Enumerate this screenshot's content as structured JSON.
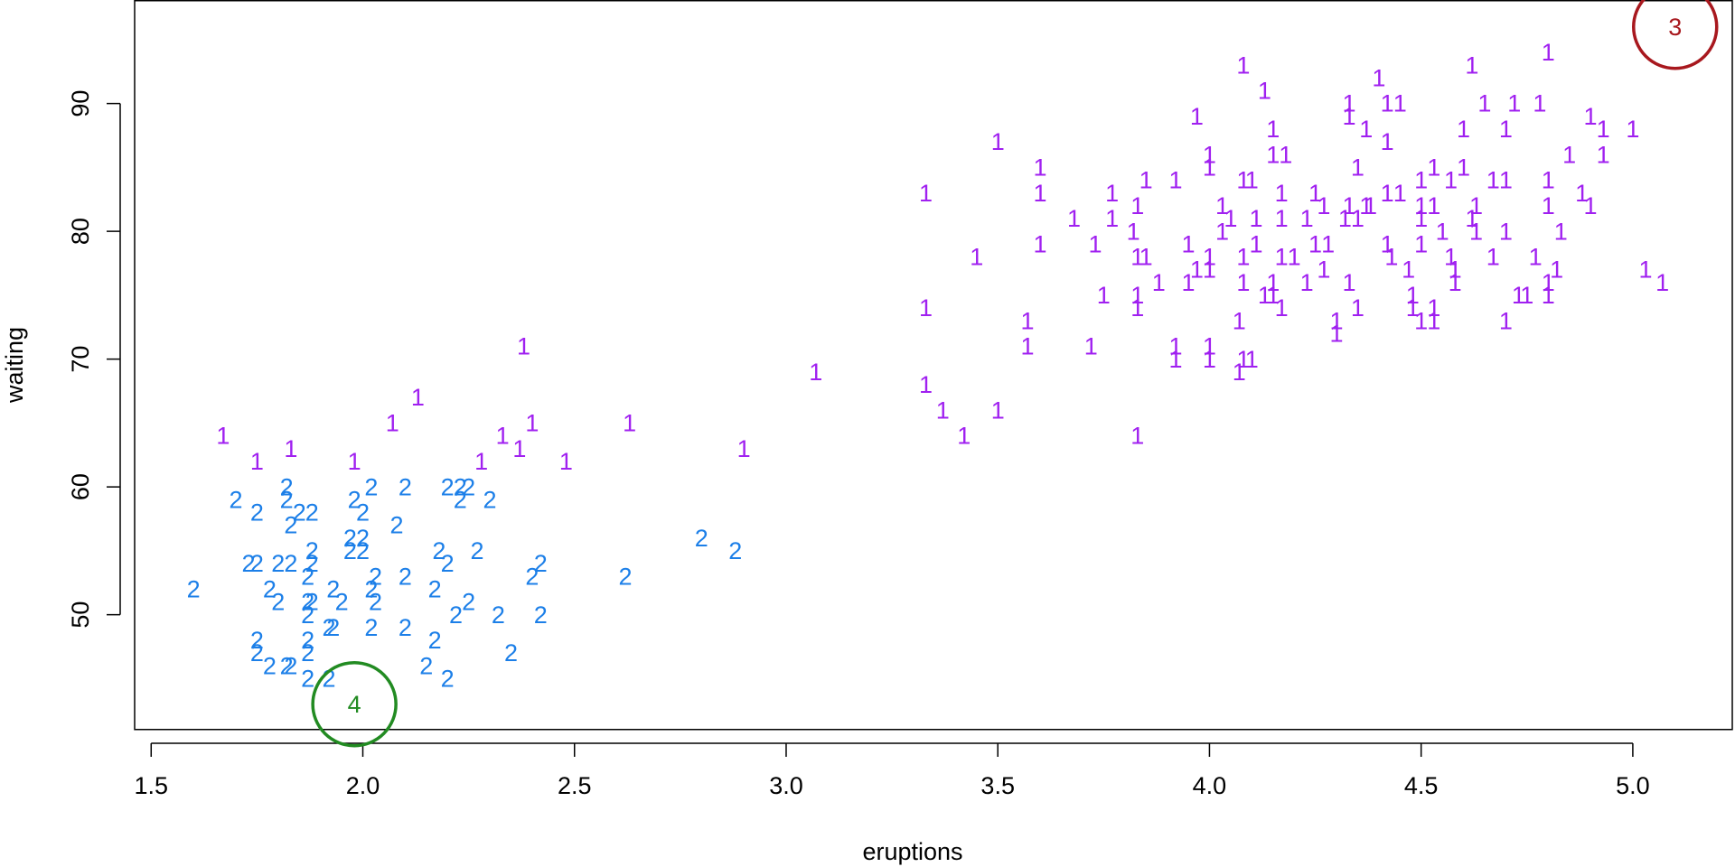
{
  "chart_data": {
    "type": "scatter",
    "xlabel": "eruptions",
    "ylabel": "waiting",
    "xlim": [
      1.461,
      5.235
    ],
    "ylim": [
      41.0,
      98.1
    ],
    "xticks": [
      1.5,
      {
        "value": 2,
        "label": "2.0"
      },
      2.5,
      {
        "value": 3,
        "label": "3.0"
      },
      3.5,
      {
        "value": 4,
        "label": "4.0"
      },
      4.5,
      {
        "value": 5,
        "label": "5.0"
      }
    ],
    "yticks": [
      50,
      60,
      70,
      80,
      90
    ],
    "grid": false,
    "series": [
      {
        "name": "1",
        "color": "#a020f0",
        "marker": "text",
        "x": [
          1.67,
          1.75,
          1.83,
          1.98,
          2.07,
          2.13,
          2.38,
          2.28,
          2.33,
          2.37,
          2.4,
          2.48,
          2.63,
          2.9,
          3.07,
          3.33,
          3.33,
          3.33,
          3.37,
          3.42,
          3.45,
          3.5,
          3.5,
          3.57,
          3.57,
          3.6,
          3.6,
          3.6,
          3.68,
          3.72,
          3.73,
          3.75,
          3.77,
          3.77,
          3.82,
          3.83,
          3.83,
          3.85,
          3.83,
          3.83,
          3.83,
          3.85,
          3.88,
          3.92,
          3.92,
          3.92,
          3.95,
          3.95,
          3.97,
          3.97,
          4.0,
          4.0,
          4.0,
          4.0,
          4.0,
          4.0,
          4.03,
          4.03,
          4.05,
          4.07,
          4.07,
          4.08,
          4.08,
          4.08,
          4.08,
          4.08,
          4.1,
          4.1,
          4.11,
          4.11,
          4.13,
          4.13,
          4.15,
          4.15,
          4.15,
          4.15,
          4.17,
          4.17,
          4.17,
          4.17,
          4.18,
          4.2,
          4.23,
          4.23,
          4.25,
          4.25,
          4.27,
          4.27,
          4.28,
          4.3,
          4.3,
          4.32,
          4.33,
          4.33,
          4.33,
          4.33,
          4.35,
          4.35,
          4.35,
          4.37,
          4.37,
          4.38,
          4.4,
          4.42,
          4.42,
          4.42,
          4.42,
          4.43,
          4.45,
          4.45,
          4.47,
          4.48,
          4.48,
          4.5,
          4.5,
          4.5,
          4.5,
          4.5,
          4.53,
          4.53,
          4.53,
          4.53,
          4.55,
          4.57,
          4.57,
          4.58,
          4.58,
          4.6,
          4.6,
          4.62,
          4.62,
          4.63,
          4.63,
          4.65,
          4.67,
          4.67,
          4.7,
          4.7,
          4.7,
          4.7,
          4.72,
          4.73,
          4.75,
          4.77,
          4.78,
          4.8,
          4.8,
          4.8,
          4.8,
          4.8,
          4.82,
          4.83,
          4.85,
          4.88,
          4.9,
          4.9,
          4.93,
          4.93,
          5.0,
          5.03,
          5.07
        ],
        "values": [
          64,
          62,
          63,
          62,
          65,
          67,
          71,
          62,
          64,
          63,
          65,
          62,
          65,
          63,
          69,
          83,
          74,
          68,
          66,
          64,
          78,
          87,
          66,
          73,
          71,
          85,
          83,
          79,
          81,
          71,
          79,
          75,
          83,
          81,
          80,
          82,
          78,
          78,
          75,
          74,
          64,
          84,
          76,
          84,
          71,
          70,
          79,
          76,
          89,
          77,
          86,
          85,
          78,
          77,
          71,
          70,
          82,
          80,
          81,
          73,
          69,
          93,
          84,
          78,
          76,
          70,
          84,
          70,
          81,
          79,
          91,
          75,
          88,
          86,
          76,
          75,
          83,
          81,
          78,
          74,
          86,
          78,
          81,
          76,
          83,
          79,
          82,
          77,
          79,
          73,
          72,
          81,
          90,
          89,
          82,
          76,
          81,
          85,
          74,
          82,
          88,
          82,
          92,
          90,
          87,
          83,
          79,
          78,
          90,
          83,
          77,
          75,
          74,
          84,
          82,
          81,
          73,
          79,
          85,
          82,
          74,
          73,
          80,
          84,
          78,
          77,
          76,
          85,
          88,
          93,
          81,
          82,
          80,
          90,
          84,
          78,
          88,
          84,
          80,
          73,
          90,
          75,
          75,
          78,
          90,
          94,
          84,
          82,
          76,
          75,
          77,
          80,
          86,
          83,
          89,
          82,
          88,
          86,
          88,
          77,
          76
        ]
      },
      {
        "name": "2",
        "color": "#1c7fe8",
        "marker": "text",
        "x": [
          1.6,
          1.7,
          1.75,
          1.73,
          1.75,
          1.75,
          1.75,
          1.78,
          1.8,
          1.78,
          1.8,
          1.82,
          1.82,
          1.83,
          1.83,
          1.85,
          1.82,
          1.83,
          1.87,
          1.87,
          1.87,
          1.87,
          1.87,
          1.88,
          1.88,
          1.88,
          1.88,
          1.87,
          1.92,
          1.92,
          1.93,
          1.93,
          1.95,
          1.97,
          1.97,
          1.98,
          2.0,
          2.0,
          2.0,
          2.02,
          2.02,
          2.02,
          2.03,
          2.03,
          2.08,
          2.1,
          2.1,
          2.1,
          2.15,
          2.17,
          2.17,
          2.18,
          2.2,
          2.2,
          2.2,
          2.22,
          2.23,
          2.23,
          2.25,
          2.25,
          2.27,
          2.3,
          2.32,
          2.35,
          2.4,
          2.42,
          2.42,
          2.62,
          2.8,
          2.88
        ],
        "values": [
          52,
          59,
          58,
          54,
          54,
          48,
          47,
          52,
          51,
          46,
          54,
          60,
          59,
          57,
          54,
          58,
          46,
          46,
          51,
          50,
          48,
          47,
          45,
          58,
          55,
          54,
          51,
          53,
          49,
          45,
          52,
          49,
          51,
          56,
          55,
          59,
          58,
          56,
          55,
          60,
          52,
          49,
          53,
          51,
          57,
          60,
          53,
          49,
          46,
          52,
          48,
          55,
          54,
          45,
          60,
          50,
          59,
          60,
          60,
          51,
          55,
          59,
          50,
          47,
          53,
          54,
          50,
          53,
          56,
          55
        ]
      },
      {
        "name": "3",
        "color": "#a8181e",
        "marker": "circle",
        "x": [
          5.1
        ],
        "values": [
          96
        ]
      },
      {
        "name": "4",
        "color": "#228b22",
        "marker": "circle",
        "x": [
          1.98
        ],
        "values": [
          43
        ]
      }
    ]
  }
}
